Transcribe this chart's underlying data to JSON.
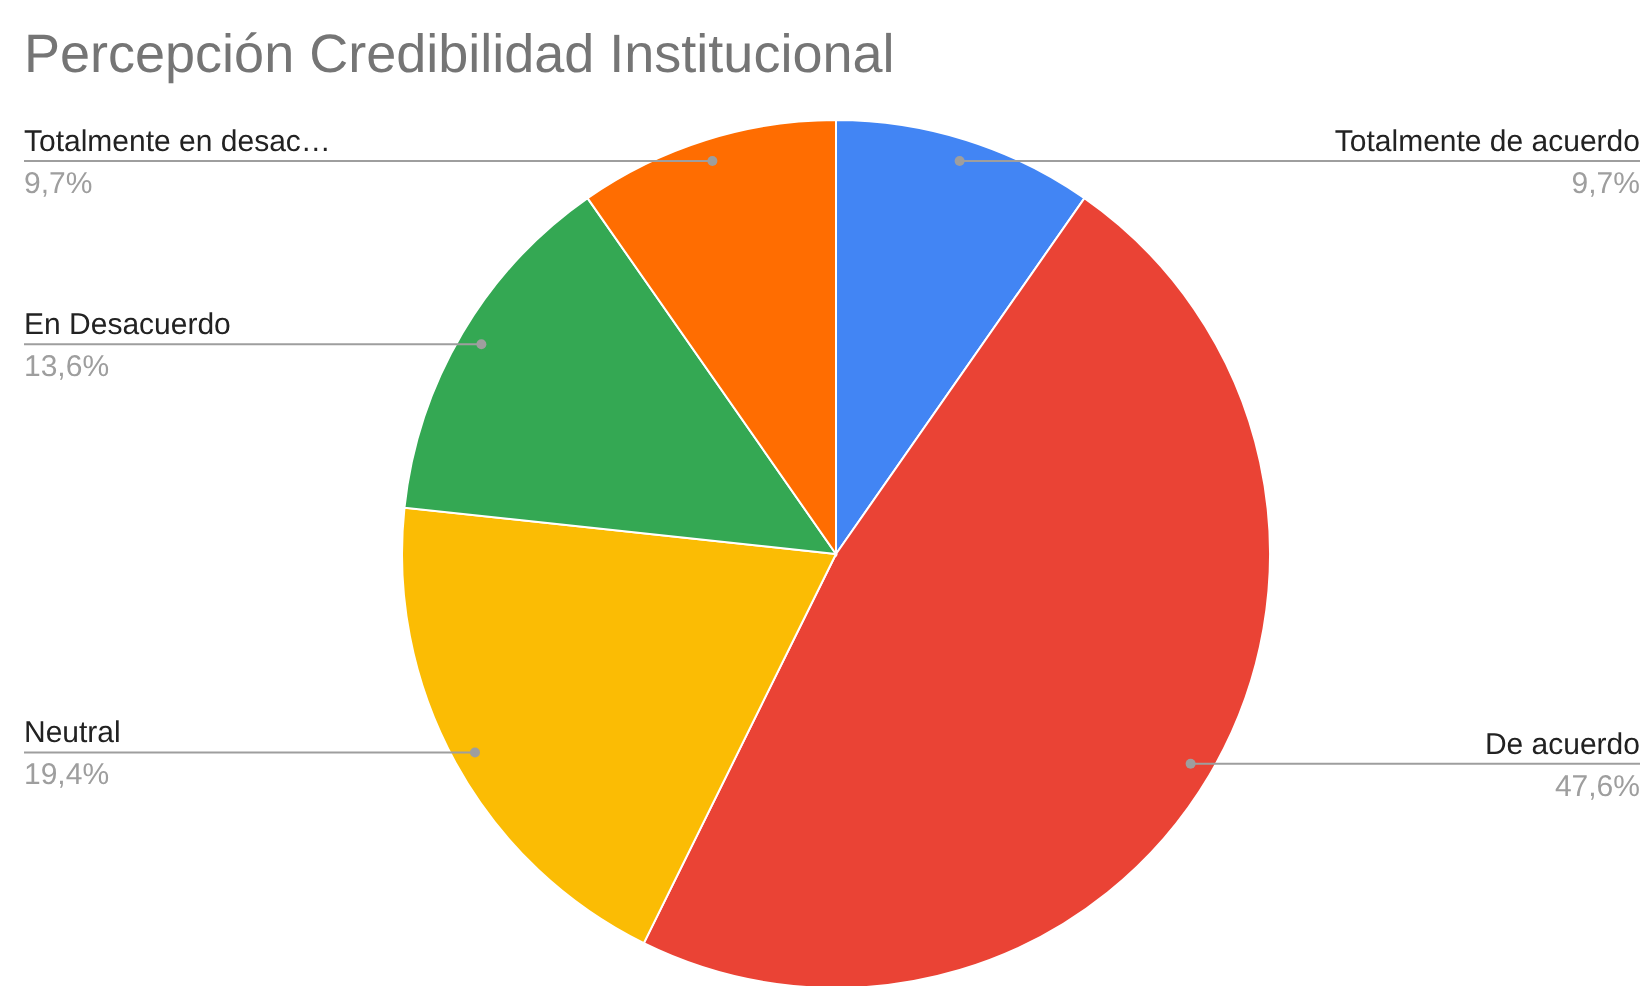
{
  "chart_data": {
    "type": "pie",
    "title": "Percepción Credibilidad Institucional",
    "categories": [
      "Totalmente de acuerdo",
      "De acuerdo",
      "Neutral",
      "En Desacuerdo",
      "Totalmente en desac…"
    ],
    "values": [
      9.7,
      47.6,
      19.4,
      13.6,
      9.7
    ],
    "colors": [
      "#4285f4",
      "#ea4335",
      "#fbbc04",
      "#34a853",
      "#ff6d01"
    ],
    "value_labels": [
      "9,7%",
      "47,6%",
      "19,4%",
      "13,6%",
      "9,7%"
    ]
  }
}
